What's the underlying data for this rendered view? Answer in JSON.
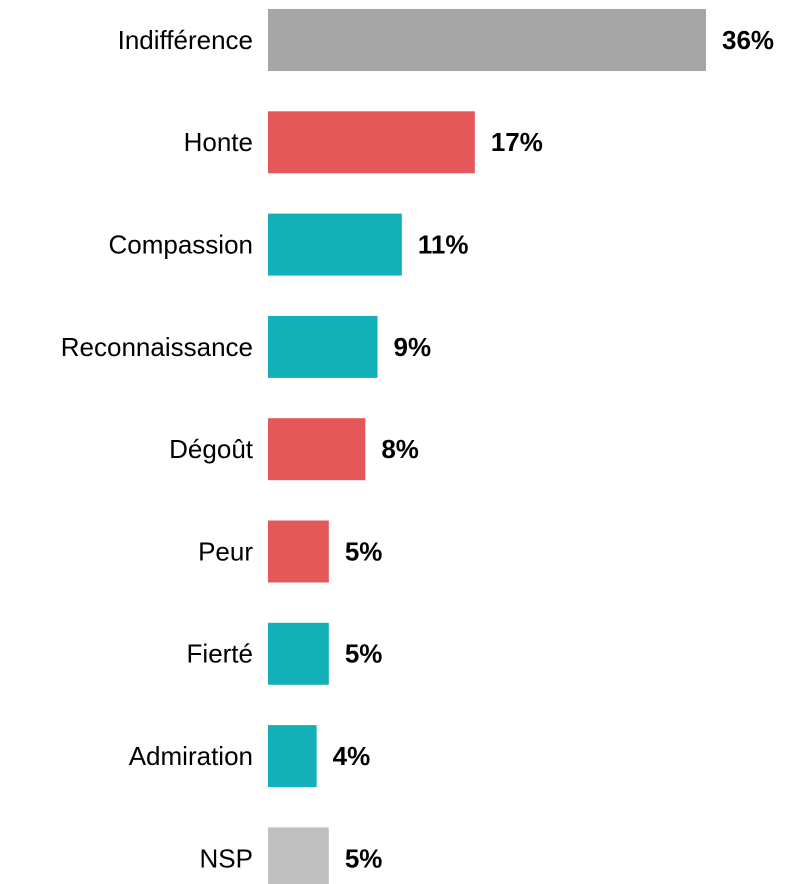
{
  "chart_data": {
    "type": "barh",
    "categories": [
      "Indifférence",
      "Honte",
      "Compassion",
      "Reconnaissance",
      "Dégoût",
      "Peur",
      "Fierté",
      "Admiration",
      "NSP"
    ],
    "values": [
      36,
      17,
      11,
      9,
      8,
      5,
      5,
      4,
      5
    ],
    "value_labels": [
      "36%",
      "17%",
      "11%",
      "9%",
      "8%",
      "5%",
      "5%",
      "4%",
      "5%"
    ],
    "colors": [
      "#a6a6a6",
      "#e5585a",
      "#14b0b8",
      "#14b0b8",
      "#e5585a",
      "#e5585a",
      "#14b0b8",
      "#14b0b8",
      "#bfbfbf"
    ]
  }
}
